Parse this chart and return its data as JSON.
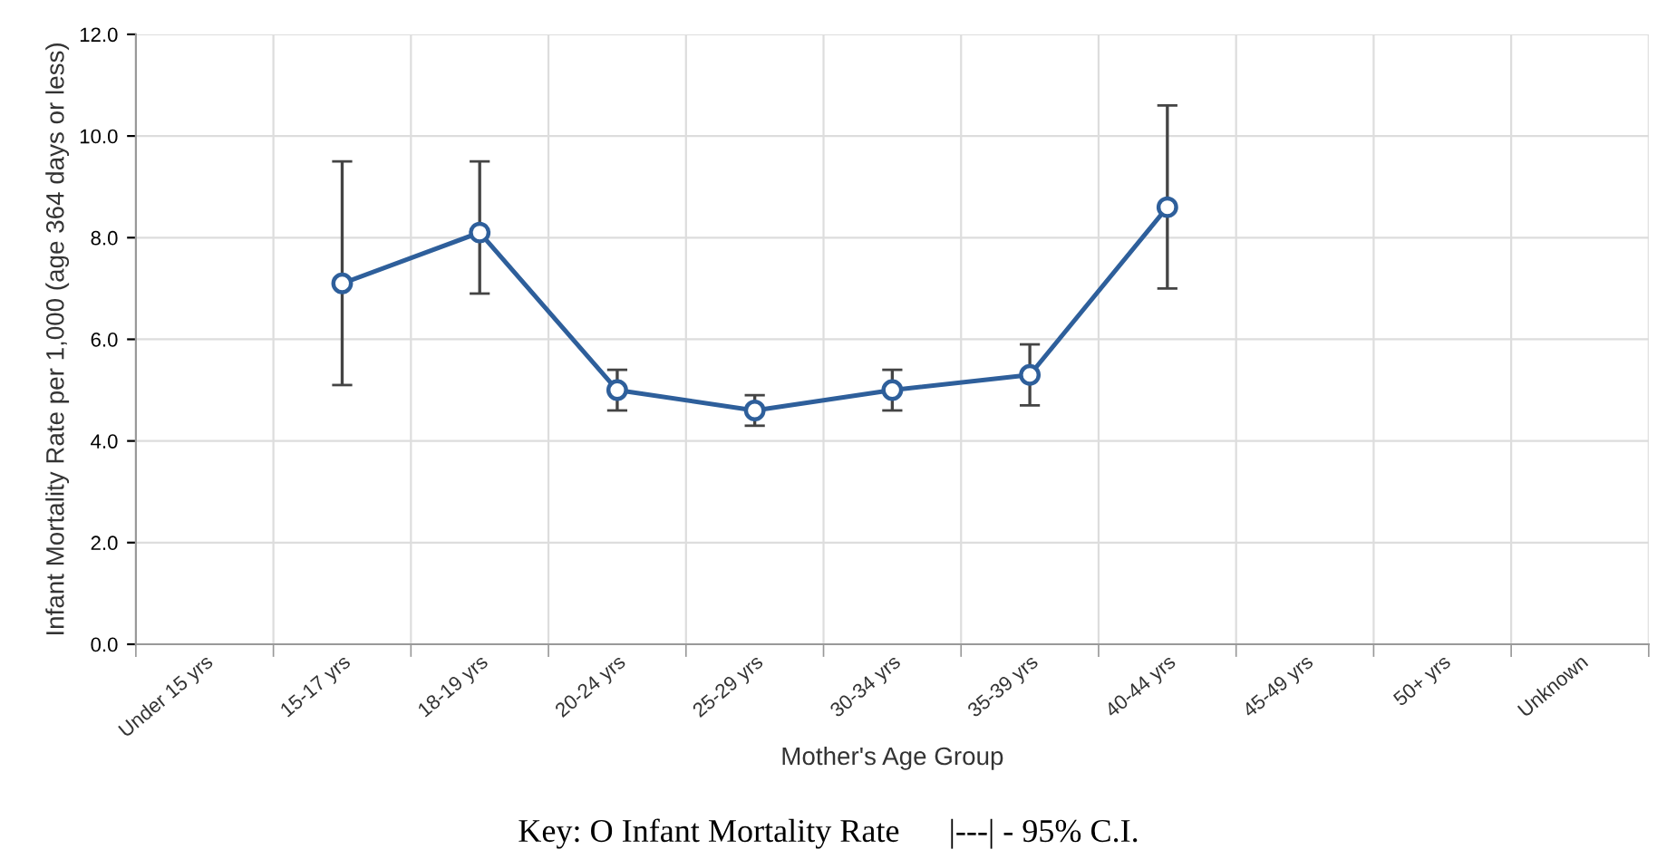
{
  "chart_data": {
    "type": "line",
    "xlabel": "Mother's Age Group",
    "ylabel": "Infant Mortality Rate per 1,000 (age 364 days or less)",
    "categories": [
      "Under 15 yrs",
      "15-17 yrs",
      "18-19 yrs",
      "20-24 yrs",
      "25-29 yrs",
      "30-34 yrs",
      "35-39 yrs",
      "40-44 yrs",
      "45-49 yrs",
      "50+ yrs",
      "Unknown"
    ],
    "series": [
      {
        "color": "#2e5f9b",
        "values": [
          null,
          7.1,
          8.1,
          5.0,
          4.6,
          5.0,
          5.3,
          8.6,
          null,
          null,
          null
        ],
        "errors": [
          null,
          [
            5.1,
            9.5
          ],
          [
            6.9,
            9.5
          ],
          [
            4.6,
            5.4
          ],
          [
            4.3,
            4.9
          ],
          [
            4.6,
            5.4
          ],
          [
            4.7,
            5.9
          ],
          [
            7.0,
            10.6
          ],
          null,
          null,
          null
        ]
      }
    ],
    "ylim": [
      0,
      12
    ],
    "yticks": [
      {
        "value": 0,
        "label": "0.0"
      },
      {
        "value": 2,
        "label": "2.0"
      },
      {
        "value": 4,
        "label": "4.0"
      },
      {
        "value": 6,
        "label": "6.0"
      },
      {
        "value": 8,
        "label": "8.0"
      },
      {
        "value": 10,
        "label": "10.0"
      },
      {
        "value": 12,
        "label": "12.0"
      }
    ],
    "grid": true,
    "marker": "circle",
    "line_style": "solid",
    "annotations": [
      "Key: O Infant Mortality Rate      |---| - 95% C.I."
    ]
  }
}
